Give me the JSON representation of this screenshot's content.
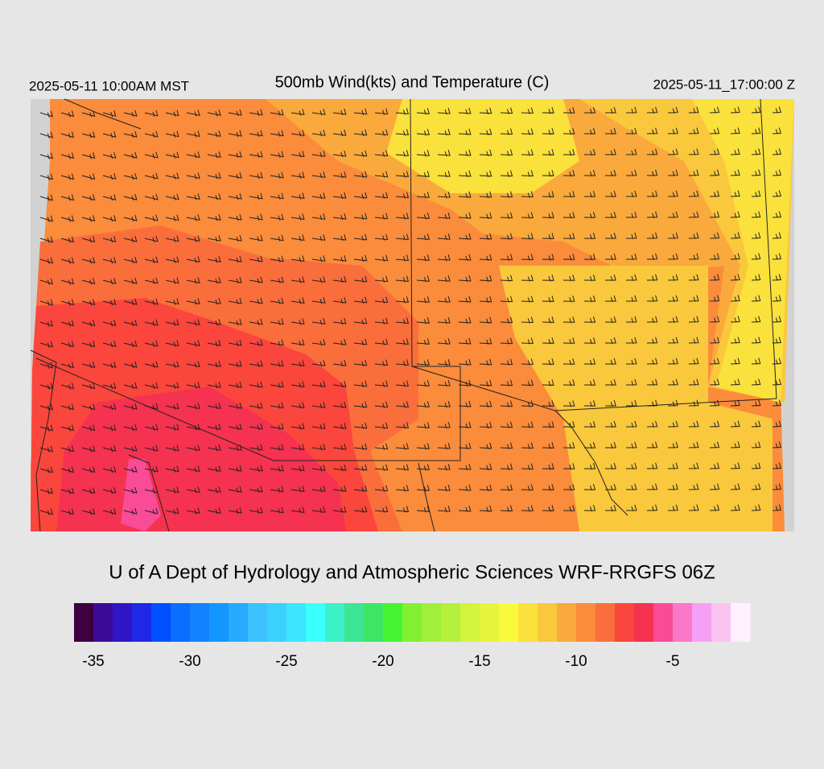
{
  "header": {
    "left": "2025-05-11 10:00AM MST",
    "title": "500mb Wind(kts) and Temperature (C)",
    "right": "2025-05-11_17:00:00 Z"
  },
  "credit": "U of A Dept of Hydrology and Atmospheric Sciences WRF-RRGFS 06Z",
  "colorbar": {
    "xlim": [
      -36,
      -1
    ],
    "xticks": [
      -35,
      -30,
      -25,
      -20,
      -15,
      -10,
      -5
    ],
    "colors": [
      "#3d0040",
      "#3c0a96",
      "#3015c8",
      "#1e28e6",
      "#0050ff",
      "#0a6eff",
      "#1482ff",
      "#1496ff",
      "#28aaff",
      "#3cc3ff",
      "#3cd2ff",
      "#3ce6ff",
      "#3cffff",
      "#3cf0c8",
      "#3ce696",
      "#3ce664",
      "#46f532",
      "#82f032",
      "#a0f03c",
      "#b4f03c",
      "#d2f53c",
      "#e6f53c",
      "#fafa3c",
      "#fae13c",
      "#fac83c",
      "#faaa3c",
      "#fa8c3c",
      "#fa6e3c",
      "#fa463c",
      "#f53250",
      "#fa4b96",
      "#fa78c8",
      "#f5a0f5",
      "#fac3f0",
      "#fff0ff"
    ]
  }
}
